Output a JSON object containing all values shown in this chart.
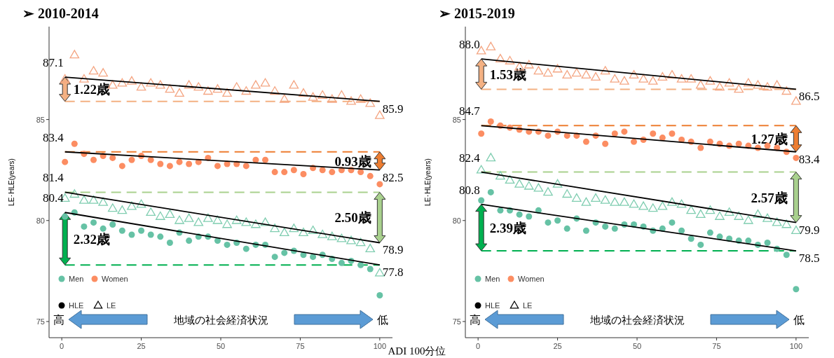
{
  "chart_data": [
    {
      "type": "scatter",
      "title": "➢ 2010-2014",
      "xlabel": "ADI 100分位",
      "ylabel": "LE･HLE(years)",
      "xlim": [
        -4,
        104
      ],
      "ylim": [
        74.2,
        89.6
      ],
      "xticks": [
        0,
        25,
        50,
        75,
        100
      ],
      "yticks": [
        75,
        80,
        85
      ],
      "legend": "bottom left",
      "x": [
        1,
        4,
        7,
        10,
        13,
        16,
        19,
        22,
        25,
        28,
        31,
        34,
        37,
        40,
        43,
        46,
        49,
        52,
        55,
        58,
        61,
        64,
        67,
        70,
        73,
        76,
        79,
        82,
        85,
        88,
        91,
        94,
        97,
        100
      ],
      "series": [
        {
          "marker": "triangle",
          "color": "#f4a582",
          "values": [
            87.0,
            88.2,
            87.0,
            87.4,
            87.3,
            86.7,
            86.8,
            86.9,
            86.6,
            86.8,
            86.7,
            86.5,
            86.3,
            86.7,
            86.6,
            86.4,
            86.5,
            86.3,
            86.6,
            86.4,
            86.7,
            86.8,
            86.4,
            86.0,
            86.7,
            86.3,
            86.1,
            86.2,
            86.0,
            86.2,
            85.9,
            86.0,
            85.8,
            85.2
          ]
        },
        {
          "marker": "circle",
          "name": "Women",
          "color": "#fc8d62",
          "values": [
            82.9,
            83.8,
            83.3,
            83.0,
            83.2,
            83.1,
            82.7,
            83.0,
            83.2,
            83.0,
            82.8,
            82.7,
            82.9,
            82.8,
            82.9,
            83.1,
            82.7,
            82.8,
            82.8,
            82.7,
            83.0,
            83.0,
            82.4,
            82.4,
            82.5,
            82.3,
            82.6,
            82.5,
            82.4,
            82.5,
            82.5,
            82.4,
            82.2,
            81.8
          ]
        },
        {
          "marker": "triangle",
          "color": "#7fcdb0",
          "values": [
            81.1,
            81.3,
            81.0,
            81.0,
            80.9,
            80.6,
            80.5,
            80.7,
            80.8,
            80.4,
            80.2,
            80.3,
            80.0,
            80.1,
            79.9,
            80.1,
            80.0,
            79.8,
            80.0,
            79.9,
            79.8,
            79.9,
            79.6,
            79.4,
            79.6,
            79.4,
            79.5,
            79.3,
            79.2,
            79.1,
            79.0,
            78.9,
            78.6,
            77.4
          ]
        },
        {
          "marker": "circle",
          "name": "Men",
          "color": "#66c2a5",
          "values": [
            80.2,
            80.4,
            79.7,
            79.9,
            79.6,
            79.8,
            79.5,
            79.3,
            79.5,
            79.3,
            79.2,
            78.9,
            79.4,
            79.0,
            79.2,
            79.2,
            79.0,
            78.8,
            78.9,
            78.6,
            78.8,
            78.8,
            78.2,
            78.4,
            78.5,
            78.3,
            78.2,
            78.3,
            78.1,
            77.9,
            78.0,
            77.8,
            77.6,
            76.3
          ]
        },
        {
          "type": "line",
          "color": "#000000",
          "values": [
            87.1,
            null,
            null,
            null,
            null,
            null,
            null,
            null,
            null,
            null,
            null,
            null,
            null,
            null,
            null,
            null,
            null,
            null,
            null,
            null,
            null,
            null,
            null,
            null,
            null,
            null,
            null,
            null,
            null,
            null,
            null,
            null,
            null,
            85.9
          ],
          "value_labels": [
            "87.1",
            null,
            null,
            null,
            null,
            null,
            null,
            null,
            null,
            null,
            null,
            null,
            null,
            null,
            null,
            null,
            null,
            null,
            null,
            null,
            null,
            null,
            null,
            null,
            null,
            null,
            null,
            null,
            null,
            null,
            null,
            null,
            null,
            "85.9"
          ]
        },
        {
          "type": "line",
          "color": "#000000",
          "values": [
            83.4,
            null,
            null,
            null,
            null,
            null,
            null,
            null,
            null,
            null,
            null,
            null,
            null,
            null,
            null,
            null,
            null,
            null,
            null,
            null,
            null,
            null,
            null,
            null,
            null,
            null,
            null,
            null,
            null,
            null,
            null,
            null,
            null,
            82.5
          ],
          "value_labels": [
            "83.4",
            null,
            null,
            null,
            null,
            null,
            null,
            null,
            null,
            null,
            null,
            null,
            null,
            null,
            null,
            null,
            null,
            null,
            null,
            null,
            null,
            null,
            null,
            null,
            null,
            null,
            null,
            null,
            null,
            null,
            null,
            null,
            null,
            "82.5"
          ]
        },
        {
          "type": "line",
          "color": "#000000",
          "values": [
            81.4,
            null,
            null,
            null,
            null,
            null,
            null,
            null,
            null,
            null,
            null,
            null,
            null,
            null,
            null,
            null,
            null,
            null,
            null,
            null,
            null,
            null,
            null,
            null,
            null,
            null,
            null,
            null,
            null,
            null,
            null,
            null,
            null,
            78.9
          ],
          "value_labels": [
            "81.4",
            null,
            null,
            null,
            null,
            null,
            null,
            null,
            null,
            null,
            null,
            null,
            null,
            null,
            null,
            null,
            null,
            null,
            null,
            null,
            null,
            null,
            null,
            null,
            null,
            null,
            null,
            null,
            null,
            null,
            null,
            null,
            null,
            "78.9"
          ]
        },
        {
          "type": "line",
          "color": "#000000",
          "values": [
            80.4,
            null,
            null,
            null,
            null,
            null,
            null,
            null,
            null,
            null,
            null,
            null,
            null,
            null,
            null,
            null,
            null,
            null,
            null,
            null,
            null,
            null,
            null,
            null,
            null,
            null,
            null,
            null,
            null,
            null,
            null,
            null,
            null,
            77.8
          ],
          "value_labels": [
            "80.4",
            null,
            null,
            null,
            null,
            null,
            null,
            null,
            null,
            null,
            null,
            null,
            null,
            null,
            null,
            null,
            null,
            null,
            null,
            null,
            null,
            null,
            null,
            null,
            null,
            null,
            null,
            null,
            null,
            null,
            null,
            null,
            null,
            "77.8"
          ]
        }
      ],
      "ref_lines": [
        {
          "axis": "y",
          "value": 85.9,
          "label": "1.22歳",
          "color": "#f4b183",
          "line_style": "dashed"
        },
        {
          "axis": "y",
          "value": 83.4,
          "label": "0.93歳",
          "color": "#ed7d31",
          "line_style": "dashed"
        },
        {
          "axis": "y",
          "value": 81.4,
          "label": "2.50歳",
          "color": "#a9d18e",
          "line_style": "dashed"
        },
        {
          "axis": "y",
          "value": 77.8,
          "label": "2.32歳",
          "color": "#00b050",
          "line_style": "dashed"
        }
      ],
      "annotations": [
        "HLE",
        "LE",
        "高",
        "地域の社会経済状況",
        "低"
      ]
    },
    {
      "type": "scatter",
      "title": "➢ 2015-2019",
      "ylabel": "LE･HLE(years)",
      "xlim": [
        -4,
        104
      ],
      "ylim": [
        74.2,
        89.6
      ],
      "xticks": [
        0,
        25,
        50,
        75,
        100
      ],
      "yticks": [
        75,
        80,
        85
      ],
      "legend": "bottom left",
      "x": [
        1,
        4,
        7,
        10,
        13,
        16,
        19,
        22,
        25,
        28,
        31,
        34,
        37,
        40,
        43,
        46,
        49,
        52,
        55,
        58,
        61,
        64,
        67,
        70,
        73,
        76,
        79,
        82,
        85,
        88,
        91,
        94,
        97,
        100
      ],
      "series": [
        {
          "marker": "triangle",
          "color": "#f4a582",
          "values": [
            88.4,
            88.6,
            88.0,
            87.9,
            87.6,
            87.7,
            87.4,
            87.3,
            87.5,
            87.2,
            87.3,
            87.2,
            87.1,
            87.4,
            87.0,
            86.9,
            87.2,
            87.0,
            86.9,
            87.1,
            87.2,
            87.0,
            87.0,
            86.7,
            86.9,
            86.6,
            86.8,
            86.5,
            86.8,
            86.7,
            86.6,
            86.7,
            86.4,
            85.9
          ]
        },
        {
          "marker": "circle",
          "name": "Women",
          "color": "#fc8d62",
          "values": [
            84.3,
            84.9,
            84.7,
            84.6,
            84.5,
            84.4,
            84.4,
            84.2,
            84.4,
            84.2,
            84.2,
            83.9,
            84.2,
            83.8,
            84.3,
            84.4,
            83.9,
            84.0,
            84.3,
            84.1,
            84.3,
            84.0,
            83.9,
            83.6,
            83.9,
            83.8,
            83.7,
            83.8,
            83.7,
            83.6,
            83.7,
            83.6,
            83.4,
            83.1
          ]
        },
        {
          "marker": "triangle",
          "color": "#7fcdb0",
          "values": [
            82.5,
            83.1,
            82.2,
            82.0,
            81.8,
            81.7,
            81.6,
            81.4,
            81.8,
            81.3,
            81.1,
            80.9,
            81.1,
            81.0,
            80.9,
            80.9,
            80.8,
            80.7,
            80.6,
            80.7,
            80.9,
            80.8,
            80.5,
            80.3,
            80.5,
            80.2,
            80.4,
            80.2,
            80.0,
            80.3,
            80.1,
            79.9,
            79.8,
            79.5
          ]
        },
        {
          "marker": "circle",
          "name": "Men",
          "color": "#66c2a5",
          "values": [
            81.0,
            81.4,
            80.5,
            80.5,
            80.3,
            80.2,
            80.5,
            79.9,
            80.0,
            79.6,
            80.1,
            79.5,
            79.9,
            79.7,
            79.6,
            79.8,
            79.8,
            79.7,
            79.5,
            79.6,
            79.9,
            79.5,
            79.1,
            78.8,
            79.4,
            79.2,
            79.1,
            79.0,
            79.0,
            78.8,
            78.9,
            78.6,
            78.3,
            76.6
          ]
        },
        {
          "type": "line",
          "color": "#000000",
          "values": [
            88.0,
            null,
            null,
            null,
            null,
            null,
            null,
            null,
            null,
            null,
            null,
            null,
            null,
            null,
            null,
            null,
            null,
            null,
            null,
            null,
            null,
            null,
            null,
            null,
            null,
            null,
            null,
            null,
            null,
            null,
            null,
            null,
            null,
            86.5
          ],
          "value_labels": [
            "88.0",
            null,
            null,
            null,
            null,
            null,
            null,
            null,
            null,
            null,
            null,
            null,
            null,
            null,
            null,
            null,
            null,
            null,
            null,
            null,
            null,
            null,
            null,
            null,
            null,
            null,
            null,
            null,
            null,
            null,
            null,
            null,
            null,
            "86.5"
          ]
        },
        {
          "type": "line",
          "color": "#000000",
          "values": [
            84.7,
            null,
            null,
            null,
            null,
            null,
            null,
            null,
            null,
            null,
            null,
            null,
            null,
            null,
            null,
            null,
            null,
            null,
            null,
            null,
            null,
            null,
            null,
            null,
            null,
            null,
            null,
            null,
            null,
            null,
            null,
            null,
            null,
            83.4
          ],
          "value_labels": [
            "84.7",
            null,
            null,
            null,
            null,
            null,
            null,
            null,
            null,
            null,
            null,
            null,
            null,
            null,
            null,
            null,
            null,
            null,
            null,
            null,
            null,
            null,
            null,
            null,
            null,
            null,
            null,
            null,
            null,
            null,
            null,
            null,
            null,
            "83.4"
          ]
        },
        {
          "type": "line",
          "color": "#000000",
          "values": [
            82.4,
            null,
            null,
            null,
            null,
            null,
            null,
            null,
            null,
            null,
            null,
            null,
            null,
            null,
            null,
            null,
            null,
            null,
            null,
            null,
            null,
            null,
            null,
            null,
            null,
            null,
            null,
            null,
            null,
            null,
            null,
            null,
            null,
            79.9
          ],
          "value_labels": [
            "82.4",
            null,
            null,
            null,
            null,
            null,
            null,
            null,
            null,
            null,
            null,
            null,
            null,
            null,
            null,
            null,
            null,
            null,
            null,
            null,
            null,
            null,
            null,
            null,
            null,
            null,
            null,
            null,
            null,
            null,
            null,
            null,
            null,
            "79.9"
          ]
        },
        {
          "type": "line",
          "color": "#000000",
          "values": [
            80.8,
            null,
            null,
            null,
            null,
            null,
            null,
            null,
            null,
            null,
            null,
            null,
            null,
            null,
            null,
            null,
            null,
            null,
            null,
            null,
            null,
            null,
            null,
            null,
            null,
            null,
            null,
            null,
            null,
            null,
            null,
            null,
            null,
            78.5
          ],
          "value_labels": [
            "80.8",
            null,
            null,
            null,
            null,
            null,
            null,
            null,
            null,
            null,
            null,
            null,
            null,
            null,
            null,
            null,
            null,
            null,
            null,
            null,
            null,
            null,
            null,
            null,
            null,
            null,
            null,
            null,
            null,
            null,
            null,
            null,
            null,
            "78.5"
          ]
        }
      ],
      "ref_lines": [
        {
          "axis": "y",
          "value": 86.5,
          "label": "1.53歳",
          "color": "#f4b183",
          "line_style": "dashed"
        },
        {
          "axis": "y",
          "value": 84.7,
          "label": "1.27歳",
          "color": "#ed7d31",
          "line_style": "dashed"
        },
        {
          "axis": "y",
          "value": 82.4,
          "label": "2.57歳",
          "color": "#a9d18e",
          "line_style": "dashed"
        },
        {
          "axis": "y",
          "value": 78.5,
          "label": "2.39歳",
          "color": "#00b050",
          "line_style": "dashed"
        }
      ],
      "annotations": [
        "HLE",
        "LE",
        "高",
        "地域の社会経済状況",
        "低"
      ]
    }
  ]
}
